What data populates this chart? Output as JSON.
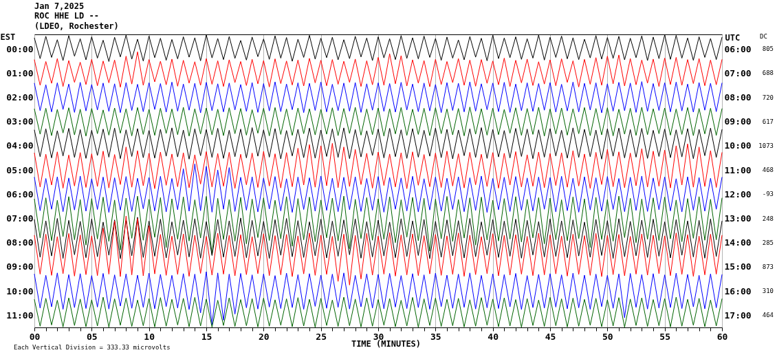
{
  "chart_data": {
    "type": "line",
    "title": "Jan 7,2025",
    "subtitle": "ROC HHE LD --\n(LDEO, Rochester)",
    "xlabel": "TIME (MINUTES)",
    "ylabel": "EST",
    "y2label": "UTC",
    "annotations": [
      "DC",
      "805",
      "688",
      "720",
      "617",
      "1073",
      "468",
      "-93",
      "248",
      "285",
      "873",
      "310",
      "464",
      "Each Vertical Division =  333.33 microvolts"
    ],
    "x": [
      0,
      0.5,
      1,
      1.5,
      2,
      2.5,
      3,
      3.5,
      4,
      4.5,
      5,
      5.5,
      6,
      6.5,
      7,
      7.5,
      8,
      8.5,
      9,
      9.5,
      10,
      10.5,
      11,
      11.5,
      12,
      12.5,
      13,
      13.5,
      14,
      14.5,
      15,
      15.5,
      16,
      16.5,
      17,
      17.5,
      18,
      18.5,
      19,
      19.5,
      20,
      20.5,
      21,
      21.5,
      22,
      22.5,
      23,
      23.5,
      24,
      24.5,
      25,
      25.5,
      26,
      26.5,
      27,
      27.5,
      28,
      28.5,
      29,
      29.5,
      30,
      30.5,
      31,
      31.5,
      32,
      32.5,
      33,
      33.5,
      34,
      34.5,
      35,
      35.5,
      36,
      36.5,
      37,
      37.5,
      38,
      38.5,
      39,
      39.5,
      40,
      40.5,
      41,
      41.5,
      42,
      42.5,
      43,
      43.5,
      44,
      44.5,
      45,
      45.5,
      46,
      46.5,
      47,
      47.5,
      48,
      48.5,
      49,
      49.5,
      50,
      50.5,
      51,
      51.5,
      52,
      52.5,
      53,
      53.5,
      54,
      54.5,
      55,
      55.5,
      56,
      56.5,
      57,
      57.5,
      58,
      58.5,
      59,
      59.5,
      60
    ],
    "xlim": [
      0,
      60
    ],
    "xticks": [
      {
        "value": 0,
        "label": "00"
      },
      {
        "value": 1,
        "label": null
      },
      {
        "value": 2,
        "label": null
      },
      {
        "value": 3,
        "label": null
      },
      {
        "value": 4,
        "label": null
      },
      {
        "value": 5,
        "label": "05"
      },
      {
        "value": 6,
        "label": null
      },
      {
        "value": 7,
        "label": null
      },
      {
        "value": 8,
        "label": null
      },
      {
        "value": 9,
        "label": null
      },
      10,
      {
        "value": 11,
        "label": null
      },
      {
        "value": 12,
        "label": null
      },
      {
        "value": 13,
        "label": null
      },
      {
        "value": 14,
        "label": null
      },
      15,
      {
        "value": 16,
        "label": null
      },
      {
        "value": 17,
        "label": null
      },
      {
        "value": 18,
        "label": null
      },
      {
        "value": 19,
        "label": null
      },
      20,
      {
        "value": 21,
        "label": null
      },
      {
        "value": 22,
        "label": null
      },
      {
        "value": 23,
        "label": null
      },
      {
        "value": 24,
        "label": null
      },
      25,
      {
        "value": 26,
        "label": null
      },
      {
        "value": 27,
        "label": null
      },
      {
        "value": 28,
        "label": null
      },
      {
        "value": 29,
        "label": null
      },
      30,
      {
        "value": 31,
        "label": null
      },
      {
        "value": 32,
        "label": null
      },
      {
        "value": 33,
        "label": null
      },
      {
        "value": 34,
        "label": null
      },
      35,
      {
        "value": 36,
        "label": null
      },
      {
        "value": 37,
        "label": null
      },
      {
        "value": 38,
        "label": null
      },
      {
        "value": 39,
        "label": null
      },
      40,
      {
        "value": 41,
        "label": null
      },
      {
        "value": 42,
        "label": null
      },
      {
        "value": 43,
        "label": null
      },
      {
        "value": 44,
        "label": null
      },
      45,
      {
        "value": 46,
        "label": null
      },
      {
        "value": 47,
        "label": null
      },
      {
        "value": 48,
        "label": null
      },
      {
        "value": 49,
        "label": null
      },
      50,
      {
        "value": 51,
        "label": null
      },
      {
        "value": 52,
        "label": null
      },
      {
        "value": 53,
        "label": null
      },
      {
        "value": 54,
        "label": null
      },
      55,
      {
        "value": 56,
        "label": null
      },
      {
        "value": 57,
        "label": null
      },
      {
        "value": 58,
        "label": null
      },
      {
        "value": 59,
        "label": null
      },
      60
    ],
    "ylim": [
      11.5,
      -0.6
    ],
    "yticks": [
      {
        "value": 0,
        "label": "00:00"
      },
      {
        "value": 1,
        "label": "01:00"
      },
      {
        "value": 2,
        "label": "02:00"
      },
      {
        "value": 3,
        "label": "03:00"
      },
      {
        "value": 4,
        "label": "04:00"
      },
      {
        "value": 5,
        "label": "05:00"
      },
      {
        "value": 6,
        "label": "06:00"
      },
      {
        "value": 7,
        "label": "07:00"
      },
      {
        "value": 8,
        "label": "08:00"
      },
      {
        "value": 9,
        "label": "09:00"
      },
      {
        "value": 10,
        "label": "10:00"
      },
      {
        "value": 11,
        "label": "11:00"
      }
    ],
    "y2lim": [
      17.5,
      5.4
    ],
    "y2ticks": [
      {
        "value": 6,
        "label": "06:00"
      },
      {
        "value": 7,
        "label": "07:00"
      },
      {
        "value": 8,
        "label": "08:00"
      },
      {
        "value": 9,
        "label": "09:00"
      },
      {
        "value": 10,
        "label": "10:00"
      },
      {
        "value": 11,
        "label": "11:00"
      },
      {
        "value": 12,
        "label": "12:00"
      },
      {
        "value": 13,
        "label": "13:00"
      },
      {
        "value": 14,
        "label": "14:00"
      },
      {
        "value": 15,
        "label": "15:00"
      },
      {
        "value": 16,
        "label": "16:00"
      },
      {
        "value": 17,
        "label": "17:00"
      }
    ],
    "grid": "x",
    "series": [
      {
        "color": "#000000",
        "values": [
          -0.45,
          0.4,
          -0.52,
          0.35,
          -0.38,
          0.48,
          -0.55,
          0.3,
          -0.42,
          0.45,
          -0.5,
          0.38,
          -0.36,
          0.52,
          -0.48,
          0.33,
          -0.57,
          0.42,
          -0.4,
          0.5,
          -0.53,
          0.36,
          -0.44,
          0.47,
          -0.39,
          0.41,
          -0.5,
          0.34,
          -0.46,
          0.49,
          -0.58,
          0.37,
          -0.43,
          0.44,
          -0.51,
          0.39,
          -0.35,
          0.46,
          -0.49,
          0.32,
          -0.41,
          0.43,
          -0.54,
          0.38,
          -0.47,
          0.51,
          -0.4,
          0.35,
          -0.56,
          0.42,
          -0.44,
          0.36,
          -0.48,
          0.45,
          -0.38,
          0.4,
          -0.52,
          0.33,
          -0.45,
          0.48,
          -0.5,
          0.37,
          -0.42,
          0.44,
          -0.55,
          0.39,
          -0.46,
          0.41,
          -0.53,
          0.35,
          -0.43,
          0.47,
          -0.49,
          0.38,
          -0.37,
          0.45,
          -0.51,
          0.34,
          -0.44,
          0.49,
          -0.56,
          0.4,
          -0.45,
          0.36,
          -0.5,
          0.43,
          -0.42,
          0.38,
          -0.57,
          0.46,
          -0.48,
          0.35,
          -0.53,
          0.41,
          -0.46,
          0.44,
          -0.4,
          0.37,
          -0.55,
          0.42,
          -0.47,
          0.39,
          -0.52,
          0.45,
          -0.44,
          0.36,
          -0.54,
          0.48,
          -0.49,
          0.4,
          -0.58,
          0.43,
          -0.56,
          0.38,
          -0.45,
          0.47,
          -0.5,
          0.35,
          -0.43,
          0.44,
          -0.48
        ]
      },
      {
        "color": "#ff0000",
        "values": [
          0.45,
          1.5,
          0.52,
          1.42,
          0.4,
          1.55,
          0.48,
          1.38,
          0.55,
          1.47,
          0.43,
          1.52,
          0.5,
          1.4,
          0.46,
          1.58,
          0.3,
          1.45,
          0.12,
          1.5,
          0.44,
          1.36,
          0.51,
          1.48,
          0.42,
          1.54,
          0.47,
          1.41,
          0.53,
          1.5,
          0.4,
          1.46,
          0.49,
          1.55,
          0.45,
          1.39,
          0.52,
          1.51,
          0.43,
          1.44,
          0.48,
          1.57,
          0.41,
          1.43,
          0.5,
          1.49,
          0.46,
          1.53,
          0.39,
          1.4,
          0.47,
          1.52,
          0.44,
          1.46,
          0.51,
          1.38,
          0.42,
          1.55,
          0.49,
          1.48,
          0.35,
          1.5,
          0.2,
          1.44,
          0.28,
          1.53,
          0.45,
          1.41,
          0.48,
          1.56,
          0.43,
          1.47,
          0.52,
          1.39,
          0.4,
          1.5,
          0.46,
          1.54,
          0.44,
          1.42,
          0.5,
          1.48,
          0.38,
          1.55,
          0.47,
          1.4,
          0.42,
          1.51,
          0.53,
          1.45,
          0.45,
          1.52,
          0.41,
          1.38,
          0.49,
          1.57,
          0.43,
          1.46,
          0.36,
          1.5,
          0.3,
          1.44,
          0.25,
          1.53,
          0.4,
          1.48,
          0.46,
          1.41,
          0.42,
          1.55,
          0.38,
          1.47,
          0.35,
          1.5,
          0.44,
          1.43,
          0.4,
          1.52,
          0.46,
          1.48,
          0.44
        ]
      },
      {
        "color": "#0000ff",
        "values": [
          1.42,
          2.55,
          1.48,
          2.6,
          1.4,
          2.5,
          1.45,
          2.62,
          1.38,
          2.56,
          1.47,
          2.52,
          1.41,
          2.58,
          1.44,
          2.63,
          1.39,
          2.54,
          1.46,
          2.59,
          1.4,
          2.5,
          1.43,
          2.61,
          1.37,
          2.57,
          1.45,
          2.53,
          1.42,
          2.64,
          1.38,
          2.55,
          1.44,
          2.6,
          1.41,
          2.52,
          1.47,
          2.58,
          1.39,
          2.62,
          1.43,
          2.56,
          1.36,
          2.59,
          1.45,
          2.51,
          1.4,
          2.63,
          1.42,
          2.54,
          1.37,
          2.6,
          1.46,
          2.55,
          1.41,
          2.57,
          1.39,
          2.62,
          1.44,
          2.53,
          1.4,
          2.58,
          1.43,
          2.61,
          1.38,
          2.52,
          1.45,
          2.59,
          1.41,
          2.56,
          1.47,
          2.63,
          1.39,
          2.54,
          1.42,
          2.6,
          1.36,
          2.57,
          1.44,
          2.51,
          1.41,
          2.59,
          1.38,
          2.62,
          1.45,
          2.55,
          1.4,
          2.58,
          1.43,
          2.53,
          1.39,
          2.61,
          1.46,
          2.56,
          1.37,
          2.6,
          1.42,
          2.52,
          1.4,
          2.64,
          1.44,
          2.57,
          1.38,
          2.55,
          1.41,
          2.62,
          1.35,
          2.58,
          1.43,
          2.54,
          1.4,
          2.6,
          1.37,
          2.56,
          1.45,
          2.61,
          1.39,
          2.53,
          1.42,
          2.59,
          1.41
        ]
      },
      {
        "color": "#006400",
        "values": [
          2.48,
          3.52,
          2.45,
          3.58,
          2.5,
          3.47,
          2.43,
          3.55,
          2.49,
          3.6,
          2.46,
          3.5,
          2.52,
          3.56,
          2.44,
          3.48,
          2.47,
          3.59,
          2.42,
          3.53,
          2.5,
          3.57,
          2.45,
          3.49,
          2.48,
          3.54,
          2.41,
          3.6,
          2.47,
          3.51,
          2.44,
          3.55,
          2.49,
          3.58,
          2.43,
          3.5,
          2.46,
          3.56,
          2.51,
          3.48,
          2.45,
          3.59,
          2.42,
          3.53,
          2.48,
          3.57,
          2.44,
          3.5,
          2.47,
          3.55,
          2.5,
          3.52,
          2.43,
          3.58,
          2.46,
          3.49,
          2.41,
          3.56,
          2.48,
          3.54,
          2.44,
          3.6,
          2.47,
          3.51,
          2.42,
          3.57,
          2.49,
          3.53,
          2.45,
          3.58,
          2.43,
          3.5,
          2.48,
          3.55,
          2.46,
          3.59,
          2.4,
          3.52,
          2.47,
          3.56,
          2.45,
          3.54,
          2.5,
          3.48,
          2.43,
          3.57,
          2.46,
          3.53,
          2.41,
          3.6,
          2.48,
          3.51,
          2.44,
          3.56,
          2.47,
          3.5,
          2.42,
          3.58,
          2.46,
          3.55,
          2.43,
          3.59,
          2.49,
          3.52,
          2.45,
          3.57,
          2.41,
          3.54,
          2.47,
          3.5,
          2.44,
          3.56,
          2.48,
          3.53,
          2.42,
          3.58,
          2.46,
          3.51,
          2.45,
          3.57,
          2.47
        ]
      },
      {
        "color": "#000000",
        "values": [
          3.35,
          4.45,
          3.3,
          4.5,
          3.38,
          4.42,
          3.28,
          4.48,
          3.33,
          4.52,
          3.36,
          4.4,
          3.31,
          4.47,
          3.27,
          4.53,
          3.34,
          4.44,
          3.29,
          4.49,
          3.37,
          4.51,
          3.32,
          4.43,
          3.26,
          4.46,
          3.35,
          4.55,
          3.3,
          4.41,
          3.33,
          4.48,
          3.28,
          4.52,
          3.36,
          4.45,
          3.31,
          4.5,
          3.25,
          4.43,
          3.34,
          4.47,
          3.29,
          4.54,
          3.37,
          4.42,
          3.32,
          4.49,
          3.27,
          4.51,
          3.35,
          4.44,
          3.3,
          4.48,
          3.26,
          4.53,
          3.33,
          4.46,
          3.38,
          4.4,
          3.31,
          4.5,
          3.28,
          4.45,
          3.34,
          4.52,
          3.29,
          4.47,
          3.36,
          4.43,
          3.27,
          4.49,
          3.32,
          4.54,
          3.35,
          4.41,
          3.3,
          4.48,
          3.25,
          4.52,
          3.33,
          4.46,
          3.37,
          4.5,
          3.28,
          4.44,
          3.31,
          4.53,
          3.34,
          4.47,
          3.29,
          4.42,
          3.36,
          4.51,
          3.26,
          4.48,
          3.32,
          4.45,
          3.35,
          4.55,
          3.3,
          4.43,
          3.27,
          4.5,
          3.33,
          4.47,
          3.28,
          4.52,
          3.36,
          4.44,
          3.31,
          4.49,
          3.34,
          4.46,
          3.29,
          4.53,
          3.32,
          4.41,
          3.27,
          4.48,
          3.33
        ]
      },
      {
        "color": "#ff0000",
        "values": [
          4.3,
          5.7,
          4.35,
          5.62,
          4.25,
          5.75,
          4.38,
          5.66,
          4.28,
          5.72,
          4.33,
          5.68,
          4.22,
          5.74,
          4.36,
          5.6,
          4.05,
          5.71,
          4.2,
          5.65,
          4.31,
          5.77,
          4.26,
          5.63,
          4.34,
          5.69,
          4.29,
          5.73,
          4.37,
          5.58,
          4.24,
          5.7,
          4.32,
          5.67,
          4.27,
          5.76,
          4.35,
          5.61,
          4.3,
          5.72,
          4.23,
          5.66,
          4.33,
          5.74,
          4.28,
          5.69,
          4.1,
          5.62,
          3.95,
          5.71,
          4.0,
          5.65,
          3.9,
          5.73,
          4.05,
          5.68,
          4.15,
          5.6,
          4.31,
          5.75,
          4.26,
          5.64,
          4.34,
          5.7,
          4.29,
          5.77,
          4.25,
          5.63,
          4.36,
          5.69,
          4.3,
          5.72,
          4.22,
          5.66,
          4.33,
          5.74,
          4.27,
          5.61,
          4.35,
          5.68,
          4.28,
          5.75,
          4.31,
          5.62,
          4.24,
          5.7,
          4.37,
          5.67,
          4.26,
          5.73,
          4.32,
          5.64,
          4.29,
          5.71,
          4.2,
          5.66,
          4.34,
          5.76,
          4.27,
          5.6,
          4.15,
          5.69,
          4.25,
          5.73,
          4.3,
          5.65,
          4.12,
          5.7,
          4.22,
          5.67,
          4.18,
          5.74,
          4.0,
          5.62,
          3.92,
          5.71,
          4.05,
          5.68,
          4.2,
          5.72,
          4.28
        ]
      },
      {
        "color": "#0000ff",
        "values": [
          5.3,
          6.68,
          5.35,
          6.62,
          5.28,
          6.72,
          5.33,
          6.65,
          5.25,
          6.7,
          5.36,
          6.63,
          5.29,
          6.75,
          5.32,
          6.66,
          5.27,
          6.71,
          5.34,
          6.6,
          5.31,
          6.69,
          5.26,
          6.73,
          5.35,
          6.64,
          4.95,
          6.7,
          4.75,
          6.68,
          4.85,
          6.74,
          5.0,
          6.62,
          4.9,
          6.71,
          5.3,
          6.66,
          5.28,
          6.73,
          5.33,
          6.61,
          5.27,
          6.69,
          5.36,
          6.75,
          5.29,
          6.63,
          5.32,
          6.7,
          5.25,
          6.67,
          5.34,
          6.72,
          5.3,
          6.64,
          5.28,
          6.71,
          5.35,
          6.66,
          5.27,
          6.74,
          5.31,
          6.62,
          5.33,
          6.69,
          5.26,
          6.73,
          5.36,
          6.65,
          5.29,
          6.7,
          5.34,
          6.63,
          5.28,
          6.72,
          5.32,
          6.67,
          5.25,
          6.75,
          5.35,
          6.64,
          5.3,
          6.71,
          5.27,
          6.66,
          5.33,
          6.69,
          5.29,
          6.62,
          5.31,
          6.73,
          5.26,
          6.68,
          5.34,
          6.74,
          5.28,
          6.65,
          5.32,
          6.7,
          5.27,
          6.63,
          5.35,
          6.72,
          5.3,
          6.67,
          5.25,
          6.71,
          5.33,
          6.64,
          5.29,
          6.69,
          5.36,
          6.73,
          5.28,
          6.66,
          5.31,
          6.7,
          5.34,
          6.62,
          5.3
        ]
      },
      {
        "color": "#006400",
        "values": [
          6.2,
          7.8,
          6.15,
          7.92,
          6.25,
          7.75,
          6.1,
          7.88,
          6.22,
          8.1,
          6.18,
          7.85,
          6.12,
          7.95,
          6.24,
          8.3,
          6.16,
          7.82,
          6.08,
          7.9,
          6.21,
          7.78,
          6.14,
          8.2,
          6.19,
          7.86,
          6.11,
          7.93,
          6.23,
          7.81,
          6.09,
          8.5,
          6.17,
          7.87,
          6.22,
          7.94,
          6.13,
          8.05,
          6.2,
          7.79,
          6.15,
          7.91,
          6.25,
          7.84,
          6.1,
          8.15,
          6.18,
          7.88,
          6.12,
          7.96,
          6.24,
          7.8,
          6.16,
          7.93,
          6.08,
          8.25,
          6.21,
          7.83,
          6.14,
          7.9,
          6.19,
          7.86,
          6.11,
          8.0,
          6.23,
          7.77,
          6.13,
          7.92,
          6.17,
          8.35,
          6.2,
          7.84,
          6.09,
          7.95,
          6.22,
          7.81,
          6.15,
          8.1,
          6.12,
          7.89,
          6.25,
          7.93,
          6.18,
          7.85,
          6.1,
          7.97,
          6.21,
          7.8,
          6.14,
          8.05,
          6.16,
          7.88,
          6.23,
          7.92,
          6.11,
          7.83,
          6.19,
          8.2,
          6.13,
          7.87,
          6.22,
          7.94,
          6.08,
          7.79,
          6.17,
          8.0,
          6.2,
          7.86,
          6.15,
          7.91,
          6.12,
          7.84,
          6.24,
          7.96,
          6.18,
          7.82,
          6.1,
          7.9,
          6.21,
          7.88,
          6.16
        ]
      },
      {
        "color": "#000000",
        "values": [
          7.05,
          8.6,
          7.1,
          8.55,
          7.0,
          8.65,
          7.08,
          8.5,
          7.12,
          8.62,
          7.02,
          8.58,
          7.15,
          8.52,
          7.06,
          8.66,
          7.09,
          8.54,
          6.95,
          8.61,
          7.11,
          8.56,
          7.03,
          8.63,
          7.14,
          8.51,
          7.07,
          8.59,
          7.01,
          8.64,
          7.13,
          8.53,
          7.04,
          8.6,
          7.1,
          8.57,
          6.98,
          8.62,
          7.08,
          8.55,
          7.12,
          8.65,
          7.05,
          8.52,
          7.0,
          8.58,
          7.09,
          8.61,
          7.14,
          8.54,
          7.03,
          8.63,
          7.11,
          8.56,
          7.06,
          8.5,
          7.02,
          8.64,
          7.13,
          8.59,
          7.07,
          8.55,
          7.15,
          8.62,
          7.01,
          8.57,
          7.1,
          8.53,
          7.04,
          8.66,
          7.12,
          8.6,
          7.06,
          8.54,
          7.09,
          8.63,
          7.0,
          8.58,
          7.14,
          8.52,
          7.05,
          8.61,
          7.11,
          8.56,
          7.03,
          8.64,
          7.08,
          8.51,
          7.13,
          8.59,
          7.02,
          8.57,
          7.1,
          8.62,
          7.06,
          8.55,
          7.15,
          8.6,
          7.04,
          8.53,
          7.09,
          8.65,
          7.01,
          8.58,
          7.12,
          8.54,
          7.07,
          8.61,
          7.03,
          8.56,
          7.14,
          8.63,
          7.05,
          8.52,
          7.1,
          8.59,
          7.08,
          8.64,
          7.02,
          8.57,
          7.11
        ]
      },
      {
        "color": "#ff0000",
        "values": [
          7.7,
          9.3,
          7.65,
          9.35,
          7.75,
          9.28,
          7.62,
          9.38,
          7.68,
          9.32,
          7.72,
          9.36,
          7.4,
          9.3,
          7.1,
          9.4,
          6.9,
          9.33,
          7.0,
          9.37,
          7.3,
          9.29,
          7.66,
          9.35,
          7.73,
          9.31,
          7.64,
          9.39,
          7.69,
          9.27,
          7.74,
          9.34,
          7.61,
          9.3,
          7.7,
          9.37,
          7.67,
          9.32,
          7.75,
          9.28,
          7.63,
          9.36,
          7.71,
          9.33,
          7.66,
          9.4,
          7.72,
          9.29,
          7.6,
          9.35,
          7.69,
          9.31,
          7.74,
          9.6,
          7.65,
          9.75,
          7.7,
          9.5,
          7.62,
          9.34,
          7.73,
          9.3,
          7.58,
          9.38,
          7.68,
          9.33,
          7.64,
          9.36,
          7.71,
          9.29,
          7.66,
          9.35,
          7.72,
          9.31,
          7.6,
          9.39,
          7.69,
          9.32,
          7.75,
          9.28,
          7.63,
          9.37,
          7.7,
          9.34,
          7.67,
          9.3,
          7.74,
          9.36,
          7.61,
          9.33,
          7.68,
          9.29,
          7.73,
          9.38,
          7.65,
          9.31,
          7.71,
          9.35,
          7.62,
          9.4,
          7.7,
          9.32,
          7.66,
          9.37,
          7.74,
          9.3,
          7.64,
          9.34,
          7.69,
          9.28,
          7.72,
          9.36,
          7.6,
          9.31,
          7.67,
          9.39,
          7.73,
          9.33,
          7.65,
          9.3,
          7.7
        ]
      },
      {
        "color": "#0000ff",
        "values": [
          9.3,
          10.7,
          9.35,
          10.65,
          9.25,
          10.75,
          9.32,
          10.68,
          9.28,
          10.72,
          9.36,
          10.66,
          9.27,
          10.74,
          9.33,
          10.62,
          9.29,
          10.71,
          9.34,
          10.67,
          9.26,
          10.73,
          9.31,
          10.64,
          9.35,
          10.7,
          9.28,
          10.76,
          9.3,
          10.9,
          9.2,
          11.4,
          9.25,
          11.2,
          9.3,
          10.95,
          9.27,
          10.69,
          9.33,
          10.74,
          9.29,
          10.66,
          9.36,
          10.72,
          9.26,
          10.68,
          9.32,
          10.75,
          9.28,
          10.63,
          9.34,
          10.71,
          9.3,
          10.67,
          9.25,
          10.74,
          9.35,
          10.65,
          9.29,
          10.7,
          9.31,
          10.73,
          9.27,
          10.66,
          9.36,
          10.72,
          9.28,
          10.68,
          9.33,
          10.75,
          9.26,
          10.64,
          9.34,
          10.71,
          9.3,
          10.67,
          9.25,
          10.74,
          9.35,
          10.69,
          9.29,
          10.72,
          9.32,
          10.65,
          9.27,
          10.76,
          9.36,
          10.68,
          9.31,
          10.7,
          9.28,
          10.66,
          9.33,
          10.73,
          9.26,
          10.69,
          9.34,
          10.75,
          9.3,
          10.64,
          9.35,
          10.71,
          9.29,
          11.1,
          9.27,
          10.67,
          9.32,
          10.74,
          9.28,
          10.7,
          9.33,
          10.68,
          9.26,
          10.72,
          9.31,
          10.65,
          9.35,
          10.73,
          9.29,
          10.69,
          9.32
        ]
      },
      {
        "color": "#006400",
        "values": [
          10.35,
          11.45,
          10.3,
          11.4,
          10.38,
          11.48,
          10.28,
          11.42,
          10.33,
          11.47,
          10.36,
          11.44,
          10.25,
          11.49,
          10.32,
          11.41,
          10.29,
          11.46,
          10.37,
          11.43,
          10.31,
          11.48,
          10.27,
          11.45,
          10.34,
          11.4,
          10.3,
          11.47,
          10.26,
          11.44,
          10.33,
          11.49,
          10.38,
          11.42,
          10.28,
          11.46,
          10.35,
          11.43,
          10.31,
          11.48,
          10.29,
          11.45,
          10.36,
          11.41,
          10.32,
          11.47,
          10.27,
          11.44,
          10.34,
          11.49,
          10.3,
          11.42,
          10.37,
          11.46,
          10.25,
          11.43,
          10.33,
          11.48,
          10.28,
          11.45,
          10.35,
          11.41,
          10.31,
          11.47,
          10.38,
          11.44,
          10.26,
          11.49,
          10.32,
          11.42,
          10.29,
          11.46,
          10.34,
          11.43,
          10.3,
          11.48,
          10.36,
          11.45,
          10.27,
          11.41,
          10.33,
          11.47,
          10.28,
          11.44,
          10.35,
          11.49,
          10.31,
          11.42,
          10.37,
          11.46,
          10.26,
          11.43,
          10.32,
          11.48,
          10.29,
          11.45,
          10.34,
          11.41,
          10.3,
          11.47,
          10.36,
          11.44,
          10.27,
          11.49,
          10.33,
          11.42,
          10.28,
          11.46,
          10.35,
          11.43,
          10.31,
          11.48,
          10.25,
          11.45,
          10.34,
          11.41,
          10.3,
          11.47,
          10.37,
          11.44,
          10.32
        ]
      }
    ]
  }
}
